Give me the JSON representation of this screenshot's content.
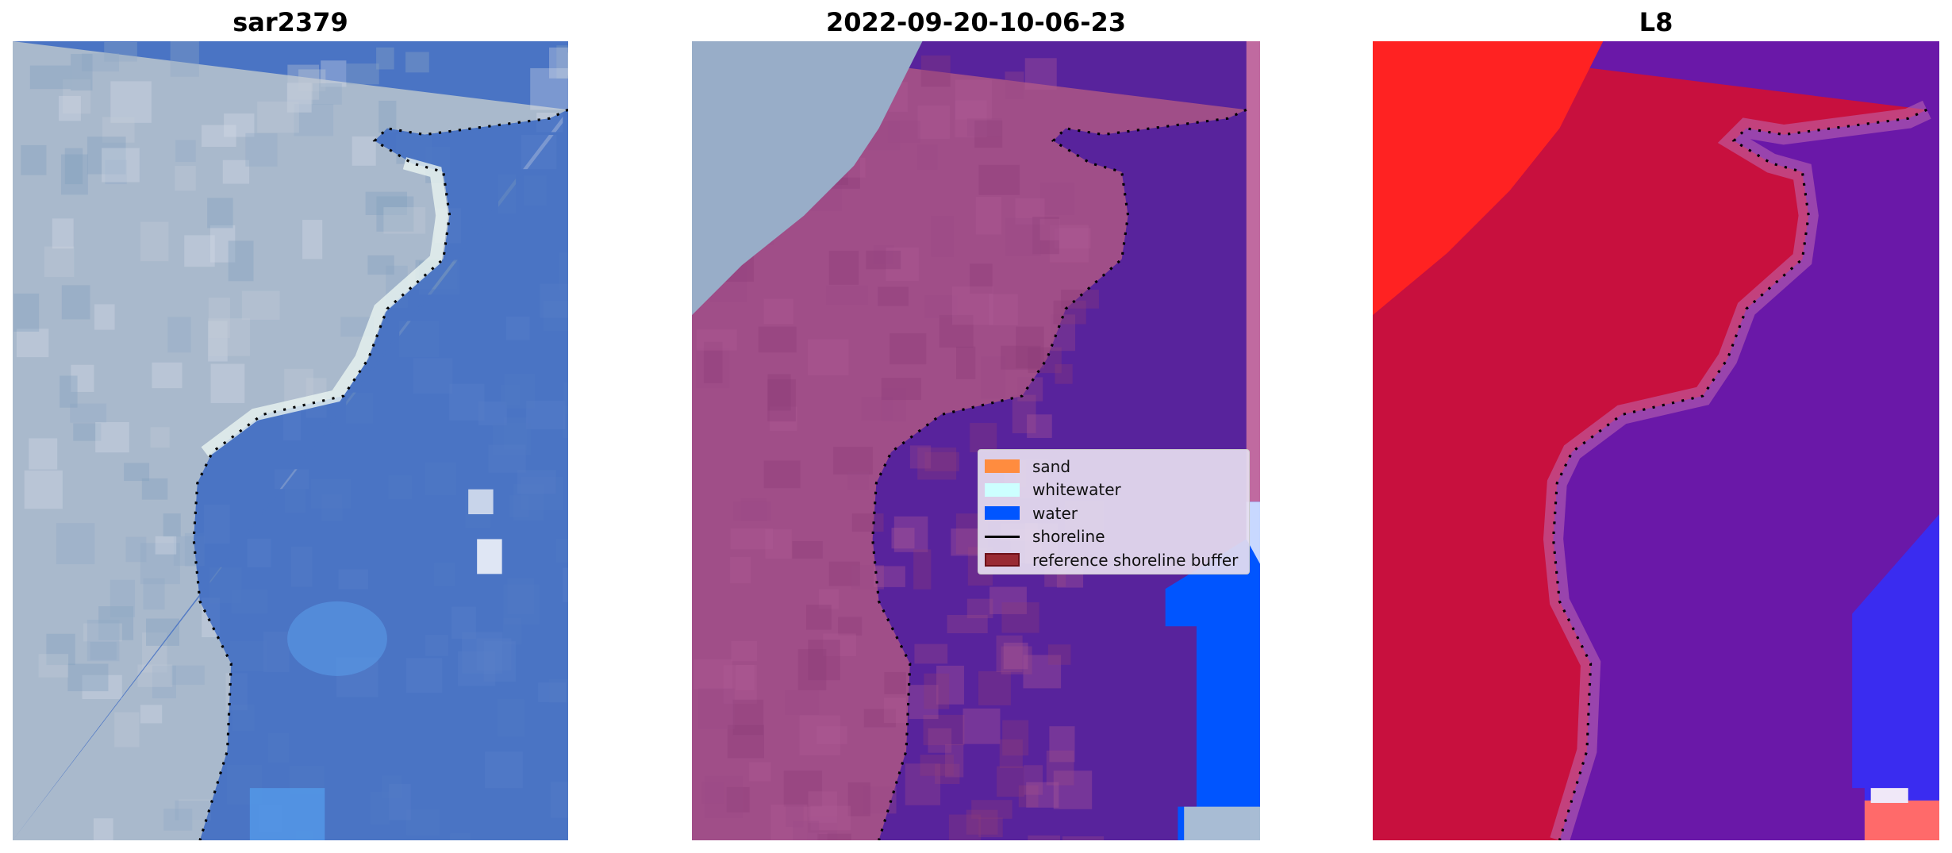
{
  "panels": [
    {
      "title": "sar2379",
      "kind": "rgb"
    },
    {
      "title": "2022-09-20-10-06-23",
      "kind": "classified"
    },
    {
      "title": "L8",
      "kind": "index"
    }
  ],
  "legend": {
    "items": [
      {
        "label": "sand",
        "color": "#ff8c3f",
        "type": "patch"
      },
      {
        "label": "whitewater",
        "color": "#ccffff",
        "type": "patch"
      },
      {
        "label": "water",
        "color": "#0055ff",
        "type": "patch"
      },
      {
        "label": "shoreline",
        "color": "#000000",
        "type": "line"
      },
      {
        "label": "reference shoreline buffer",
        "color": "#992a33",
        "type": "patch"
      }
    ]
  },
  "colors": {
    "land_rgb": "#a9b9cc",
    "water_rgb": "#4a74c4",
    "land_class": "#a04e88",
    "water_class": "#58239c",
    "water_blue": "#0055ff",
    "index_land": "#c8103e",
    "index_bright": "#ff2222",
    "index_water": "#6a18a8"
  }
}
